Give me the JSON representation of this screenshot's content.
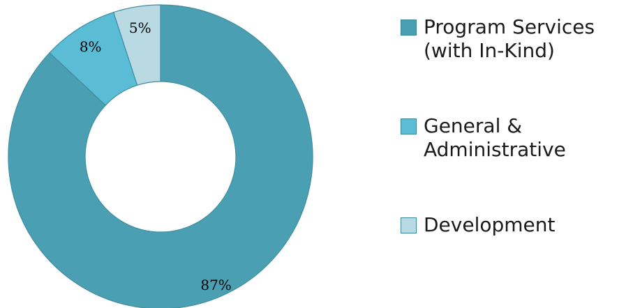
{
  "chart_data": {
    "type": "pie",
    "donut": true,
    "categories": [
      "Program Services\n(with In-Kind)",
      "General &\nAdministrative",
      "Development"
    ],
    "values": [
      87,
      8,
      5
    ],
    "data_labels": [
      "87%",
      "8%",
      "5%"
    ],
    "colors": [
      "#4a9fb3",
      "#5bbcd6",
      "#b9d9e3"
    ],
    "legend_position": "right",
    "title": ""
  }
}
